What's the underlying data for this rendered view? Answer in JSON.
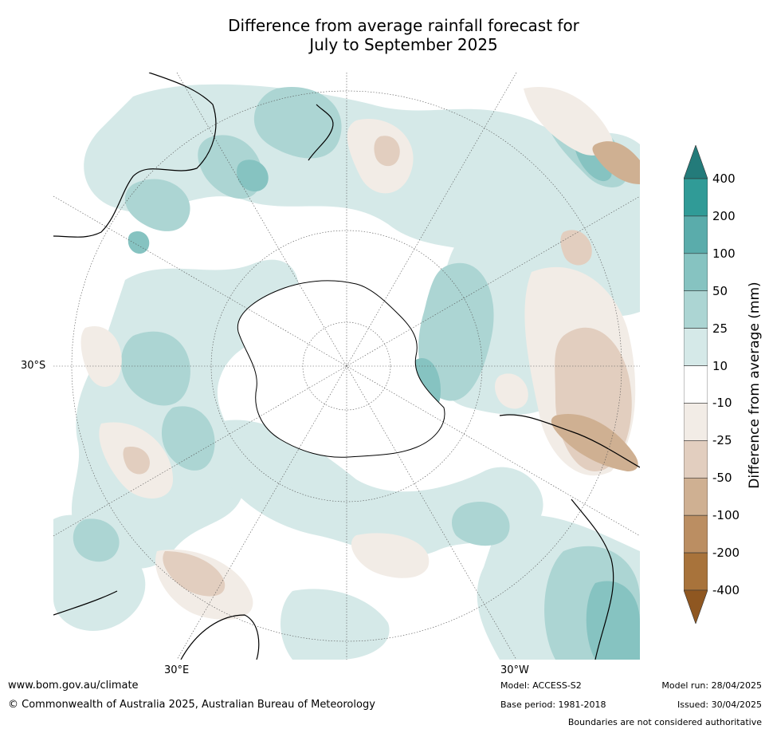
{
  "title_line1": "Difference from average rainfall forecast for",
  "title_line2": "July to September 2025",
  "lat_label": "30°S",
  "lon_labels": [
    "30°E",
    "30°W"
  ],
  "legend": {
    "label": "Difference from average (mm)",
    "ticks": [
      "400",
      "200",
      "100",
      "50",
      "25",
      "10",
      "-10",
      "-25",
      "-50",
      "-100",
      "-200",
      "-400"
    ],
    "colors": [
      "#237b7a",
      "#309b97",
      "#5aacab",
      "#86c3c1",
      "#acd5d3",
      "#d5e9e8",
      "#ffffff",
      "#f2ece6",
      "#e2cebf",
      "#cfb092",
      "#bb8e62",
      "#a8733b",
      "#8f5721"
    ]
  },
  "footer": {
    "website": "www.bom.gov.au/climate",
    "copyright": "© Commonwealth of Australia 2025, Australian Bureau of Meteorology",
    "model": "Model: ACCESS-S2",
    "base_period": "Base period: 1981-2018",
    "model_run": "Model run: 28/04/2025",
    "issued": "Issued: 30/04/2025",
    "disclaimer": "Boundaries are not considered authoritative"
  }
}
